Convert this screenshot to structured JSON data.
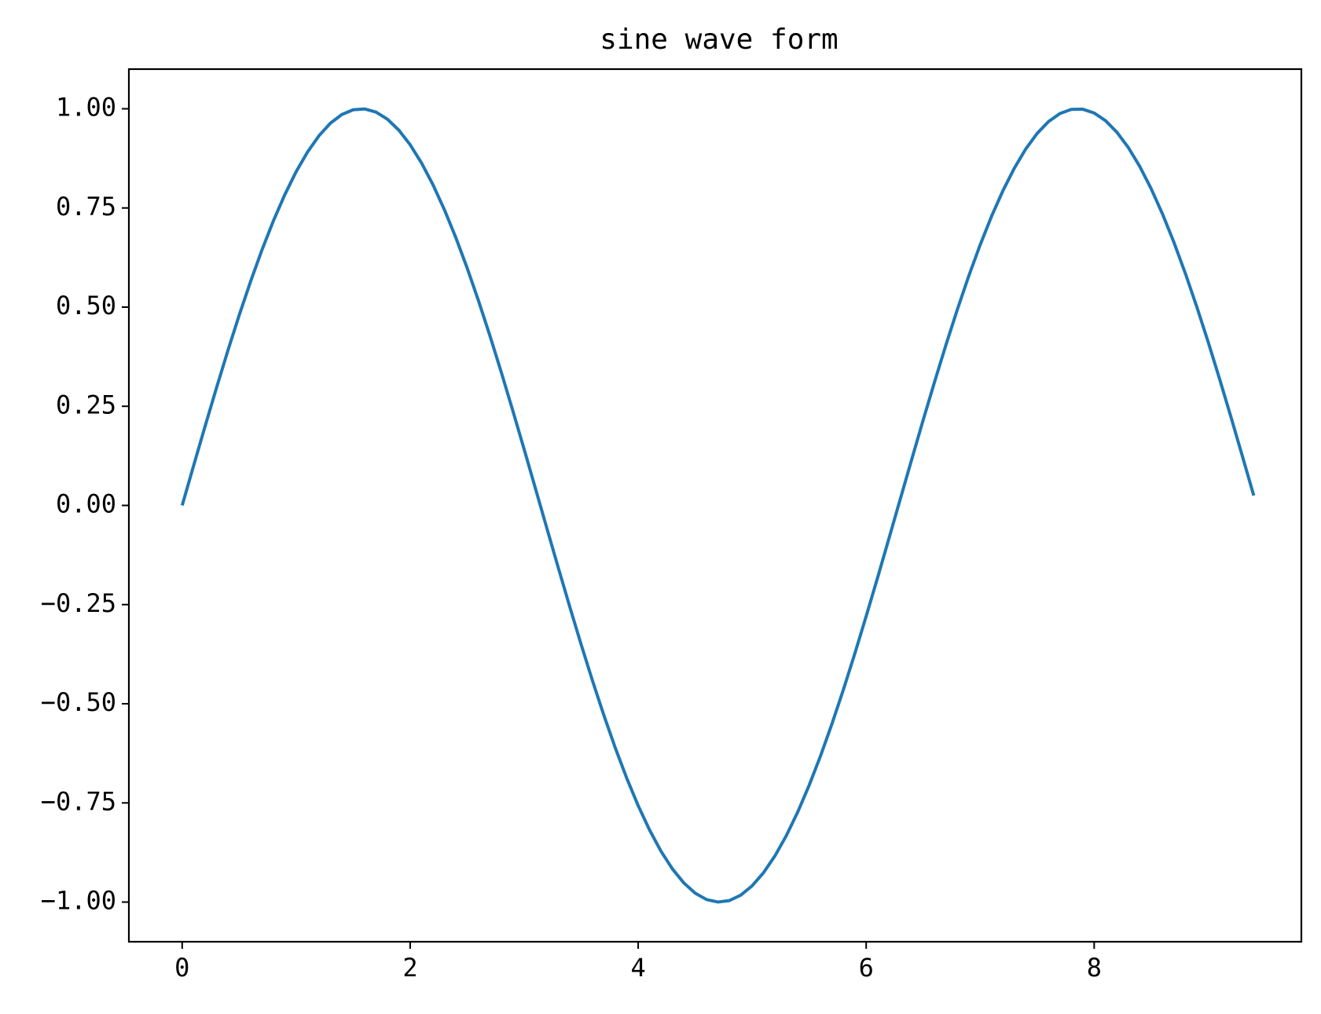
{
  "chart_data": {
    "type": "line",
    "title": "sine wave form",
    "xlabel": "",
    "ylabel": "",
    "xlim": [
      -0.4675,
      9.8175
    ],
    "ylim": [
      -1.1,
      1.1
    ],
    "grid": false,
    "legend": "none",
    "x_ticks": [
      0,
      2,
      4,
      6,
      8
    ],
    "x_tick_labels": [
      "0",
      "2",
      "4",
      "6",
      "8"
    ],
    "y_ticks": [
      1.0,
      0.75,
      0.5,
      0.25,
      0.0,
      -0.25,
      -0.5,
      -0.75,
      -1.0
    ],
    "y_tick_labels": [
      "1.00",
      "0.75",
      "0.50",
      "0.25",
      "0.00",
      "−0.25",
      "−0.50",
      "−0.75",
      "−1.00"
    ],
    "series": [
      {
        "color": "#1f77b4",
        "x": [
          0,
          0.1,
          0.2,
          0.3,
          0.4,
          0.5,
          0.6,
          0.7,
          0.8,
          0.9,
          1.0,
          1.1,
          1.2,
          1.3,
          1.4,
          1.5,
          1.6,
          1.7,
          1.8,
          1.9,
          2.0,
          2.1,
          2.2,
          2.3,
          2.4,
          2.5,
          2.6,
          2.7,
          2.8,
          2.9,
          3.0,
          3.1,
          3.2,
          3.3,
          3.4,
          3.5,
          3.6,
          3.7,
          3.8,
          3.9,
          4.0,
          4.1,
          4.2,
          4.3,
          4.4,
          4.5,
          4.6,
          4.7,
          4.8,
          4.9,
          5.0,
          5.1,
          5.2,
          5.3,
          5.4,
          5.5,
          5.6,
          5.7,
          5.8,
          5.9,
          6.0,
          6.1,
          6.2,
          6.3,
          6.4,
          6.5,
          6.6,
          6.7,
          6.8,
          6.9,
          7.0,
          7.1,
          7.2,
          7.3,
          7.4,
          7.5,
          7.6,
          7.7,
          7.8,
          7.9,
          8.0,
          8.1,
          8.2,
          8.3,
          8.4,
          8.5,
          8.6,
          8.7,
          8.8,
          8.9,
          9.0,
          9.1,
          9.2,
          9.3,
          9.4
        ],
        "y": [
          0.0,
          0.0998,
          0.1987,
          0.2955,
          0.3894,
          0.4794,
          0.5646,
          0.6442,
          0.7174,
          0.7833,
          0.8415,
          0.8912,
          0.932,
          0.9636,
          0.9854,
          0.9975,
          0.9996,
          0.9917,
          0.9738,
          0.9463,
          0.9093,
          0.8632,
          0.8085,
          0.7457,
          0.6755,
          0.5985,
          0.5155,
          0.4274,
          0.335,
          0.2392,
          0.1411,
          0.0416,
          -0.0584,
          -0.1577,
          -0.2555,
          -0.3508,
          -0.4425,
          -0.5298,
          -0.6119,
          -0.6878,
          -0.7568,
          -0.8183,
          -0.8716,
          -0.9162,
          -0.9516,
          -0.9775,
          -0.9937,
          -0.9999,
          -0.9962,
          -0.9825,
          -0.9589,
          -0.9258,
          -0.8835,
          -0.8323,
          -0.7728,
          -0.7055,
          -0.6313,
          -0.5507,
          -0.4646,
          -0.3739,
          -0.2794,
          -0.1822,
          -0.0831,
          0.0168,
          0.1165,
          0.2151,
          0.3115,
          0.4048,
          0.4941,
          0.5784,
          0.657,
          0.729,
          0.7937,
          0.8504,
          0.8987,
          0.938,
          0.9679,
          0.9882,
          0.9985,
          0.9989,
          0.9894,
          0.9699,
          0.9407,
          0.9022,
          0.8546,
          0.7985,
          0.7344,
          0.663,
          0.5849,
          0.501,
          0.4121,
          0.319,
          0.2229,
          0.1245,
          0.0248
        ]
      }
    ]
  }
}
